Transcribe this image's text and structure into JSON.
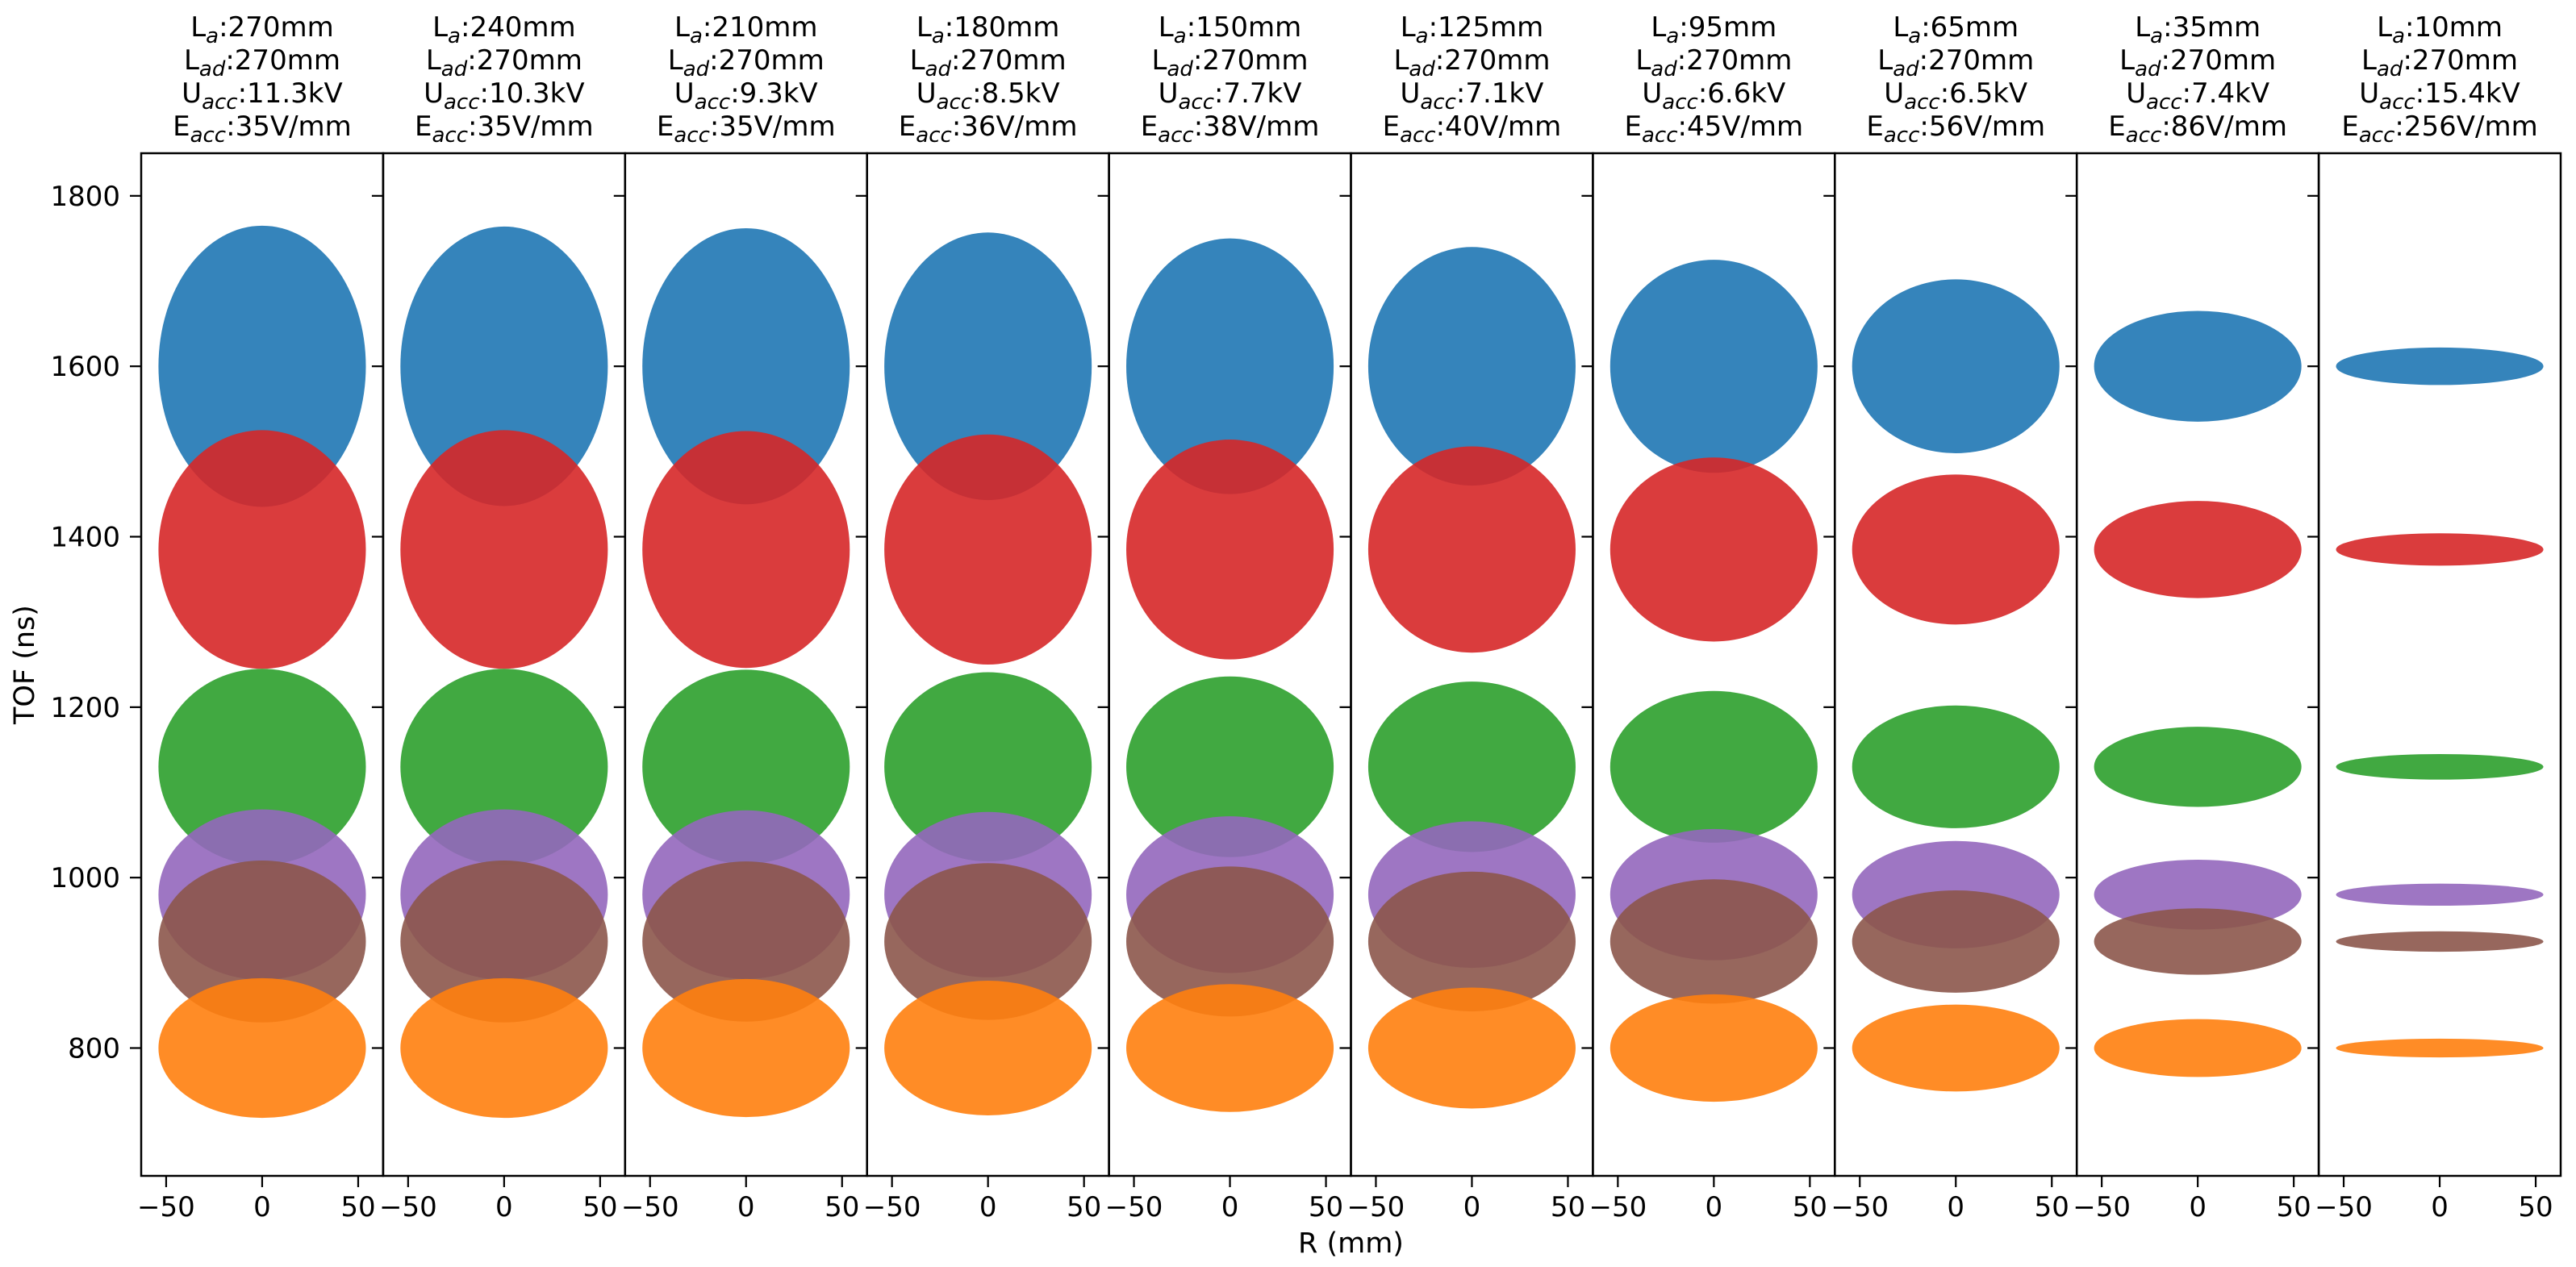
{
  "chart_data": {
    "type": "scatter",
    "layout": "10 side-by-side panels sharing the TOF (y) axis",
    "xlabel": "R (mm)",
    "ylabel": "TOF (ns)",
    "xlim": [
      -63,
      63
    ],
    "ylim": [
      650,
      1850
    ],
    "xticks": [
      -50,
      0,
      50
    ],
    "yticks": [
      800,
      1000,
      1200,
      1400,
      1600,
      1800
    ],
    "grid": false,
    "legend": "none",
    "marker_shape": "ellipse",
    "series_colors": [
      "#1f77b4",
      "#d62728",
      "#2ca02c",
      "#9467bd",
      "#8c564b",
      "#ff7f0e"
    ],
    "panels": [
      {
        "title": [
          {
            "base": "L",
            "sub": "a",
            "value": ":270mm"
          },
          {
            "base": "L",
            "sub": "ad",
            "value": ":270mm"
          },
          {
            "base": "U",
            "sub": "acc",
            "value": ":11.3kV"
          },
          {
            "base": "E",
            "sub": "acc",
            "value": ":35V/mm"
          }
        ],
        "ellipses": [
          {
            "x": 0,
            "y": 1600,
            "rx": 54,
            "ry": 165
          },
          {
            "x": 0,
            "y": 1385,
            "rx": 54,
            "ry": 140
          },
          {
            "x": 0,
            "y": 1130,
            "rx": 54,
            "ry": 115
          },
          {
            "x": 0,
            "y": 980,
            "rx": 54,
            "ry": 100
          },
          {
            "x": 0,
            "y": 925,
            "rx": 54,
            "ry": 95
          },
          {
            "x": 0,
            "y": 800,
            "rx": 54,
            "ry": 82
          }
        ]
      },
      {
        "title": [
          {
            "base": "L",
            "sub": "a",
            "value": ":240mm"
          },
          {
            "base": "L",
            "sub": "ad",
            "value": ":270mm"
          },
          {
            "base": "U",
            "sub": "acc",
            "value": ":10.3kV"
          },
          {
            "base": "E",
            "sub": "acc",
            "value": ":35V/mm"
          }
        ],
        "ellipses": [
          {
            "x": 0,
            "y": 1600,
            "rx": 54,
            "ry": 164
          },
          {
            "x": 0,
            "y": 1385,
            "rx": 54,
            "ry": 140
          },
          {
            "x": 0,
            "y": 1130,
            "rx": 54,
            "ry": 115
          },
          {
            "x": 0,
            "y": 980,
            "rx": 54,
            "ry": 100
          },
          {
            "x": 0,
            "y": 925,
            "rx": 54,
            "ry": 95
          },
          {
            "x": 0,
            "y": 800,
            "rx": 54,
            "ry": 82
          }
        ]
      },
      {
        "title": [
          {
            "base": "L",
            "sub": "a",
            "value": ":210mm"
          },
          {
            "base": "L",
            "sub": "ad",
            "value": ":270mm"
          },
          {
            "base": "U",
            "sub": "acc",
            "value": ":9.3kV"
          },
          {
            "base": "E",
            "sub": "acc",
            "value": ":35V/mm"
          }
        ],
        "ellipses": [
          {
            "x": 0,
            "y": 1600,
            "rx": 54,
            "ry": 162
          },
          {
            "x": 0,
            "y": 1385,
            "rx": 54,
            "ry": 139
          },
          {
            "x": 0,
            "y": 1130,
            "rx": 54,
            "ry": 114
          },
          {
            "x": 0,
            "y": 980,
            "rx": 54,
            "ry": 99
          },
          {
            "x": 0,
            "y": 925,
            "rx": 54,
            "ry": 94
          },
          {
            "x": 0,
            "y": 800,
            "rx": 54,
            "ry": 81
          }
        ]
      },
      {
        "title": [
          {
            "base": "L",
            "sub": "a",
            "value": ":180mm"
          },
          {
            "base": "L",
            "sub": "ad",
            "value": ":270mm"
          },
          {
            "base": "U",
            "sub": "acc",
            "value": ":8.5kV"
          },
          {
            "base": "E",
            "sub": "acc",
            "value": ":36V/mm"
          }
        ],
        "ellipses": [
          {
            "x": 0,
            "y": 1600,
            "rx": 54,
            "ry": 157
          },
          {
            "x": 0,
            "y": 1385,
            "rx": 54,
            "ry": 135
          },
          {
            "x": 0,
            "y": 1130,
            "rx": 54,
            "ry": 111
          },
          {
            "x": 0,
            "y": 980,
            "rx": 54,
            "ry": 97
          },
          {
            "x": 0,
            "y": 925,
            "rx": 54,
            "ry": 92
          },
          {
            "x": 0,
            "y": 800,
            "rx": 54,
            "ry": 79
          }
        ]
      },
      {
        "title": [
          {
            "base": "L",
            "sub": "a",
            "value": ":150mm"
          },
          {
            "base": "L",
            "sub": "ad",
            "value": ":270mm"
          },
          {
            "base": "U",
            "sub": "acc",
            "value": ":7.7kV"
          },
          {
            "base": "E",
            "sub": "acc",
            "value": ":38V/mm"
          }
        ],
        "ellipses": [
          {
            "x": 0,
            "y": 1600,
            "rx": 54,
            "ry": 150
          },
          {
            "x": 0,
            "y": 1385,
            "rx": 54,
            "ry": 129
          },
          {
            "x": 0,
            "y": 1130,
            "rx": 54,
            "ry": 106
          },
          {
            "x": 0,
            "y": 980,
            "rx": 54,
            "ry": 92
          },
          {
            "x": 0,
            "y": 925,
            "rx": 54,
            "ry": 88
          },
          {
            "x": 0,
            "y": 800,
            "rx": 54,
            "ry": 75
          }
        ]
      },
      {
        "title": [
          {
            "base": "L",
            "sub": "a",
            "value": ":125mm"
          },
          {
            "base": "L",
            "sub": "ad",
            "value": ":270mm"
          },
          {
            "base": "U",
            "sub": "acc",
            "value": ":7.1kV"
          },
          {
            "base": "E",
            "sub": "acc",
            "value": ":40V/mm"
          }
        ],
        "ellipses": [
          {
            "x": 0,
            "y": 1600,
            "rx": 54,
            "ry": 140
          },
          {
            "x": 0,
            "y": 1385,
            "rx": 54,
            "ry": 121
          },
          {
            "x": 0,
            "y": 1130,
            "rx": 54,
            "ry": 100
          },
          {
            "x": 0,
            "y": 980,
            "rx": 54,
            "ry": 86
          },
          {
            "x": 0,
            "y": 925,
            "rx": 54,
            "ry": 82
          },
          {
            "x": 0,
            "y": 800,
            "rx": 54,
            "ry": 71
          }
        ]
      },
      {
        "title": [
          {
            "base": "L",
            "sub": "a",
            "value": ":95mm"
          },
          {
            "base": "L",
            "sub": "ad",
            "value": ":270mm"
          },
          {
            "base": "U",
            "sub": "acc",
            "value": ":6.6kV"
          },
          {
            "base": "E",
            "sub": "acc",
            "value": ":45V/mm"
          }
        ],
        "ellipses": [
          {
            "x": 0,
            "y": 1600,
            "rx": 54,
            "ry": 125
          },
          {
            "x": 0,
            "y": 1385,
            "rx": 54,
            "ry": 108
          },
          {
            "x": 0,
            "y": 1130,
            "rx": 54,
            "ry": 89
          },
          {
            "x": 0,
            "y": 980,
            "rx": 54,
            "ry": 77
          },
          {
            "x": 0,
            "y": 925,
            "rx": 54,
            "ry": 73
          },
          {
            "x": 0,
            "y": 800,
            "rx": 54,
            "ry": 63
          }
        ]
      },
      {
        "title": [
          {
            "base": "L",
            "sub": "a",
            "value": ":65mm"
          },
          {
            "base": "L",
            "sub": "ad",
            "value": ":270mm"
          },
          {
            "base": "U",
            "sub": "acc",
            "value": ":6.5kV"
          },
          {
            "base": "E",
            "sub": "acc",
            "value": ":56V/mm"
          }
        ],
        "ellipses": [
          {
            "x": 0,
            "y": 1600,
            "rx": 54,
            "ry": 102
          },
          {
            "x": 0,
            "y": 1385,
            "rx": 54,
            "ry": 88
          },
          {
            "x": 0,
            "y": 1130,
            "rx": 54,
            "ry": 72
          },
          {
            "x": 0,
            "y": 980,
            "rx": 54,
            "ry": 63
          },
          {
            "x": 0,
            "y": 925,
            "rx": 54,
            "ry": 60
          },
          {
            "x": 0,
            "y": 800,
            "rx": 54,
            "ry": 51
          }
        ]
      },
      {
        "title": [
          {
            "base": "L",
            "sub": "a",
            "value": ":35mm"
          },
          {
            "base": "L",
            "sub": "ad",
            "value": ":270mm"
          },
          {
            "base": "U",
            "sub": "acc",
            "value": ":7.4kV"
          },
          {
            "base": "E",
            "sub": "acc",
            "value": ":86V/mm"
          }
        ],
        "ellipses": [
          {
            "x": 0,
            "y": 1600,
            "rx": 54,
            "ry": 65
          },
          {
            "x": 0,
            "y": 1385,
            "rx": 54,
            "ry": 57
          },
          {
            "x": 0,
            "y": 1130,
            "rx": 54,
            "ry": 47
          },
          {
            "x": 0,
            "y": 980,
            "rx": 54,
            "ry": 41
          },
          {
            "x": 0,
            "y": 925,
            "rx": 54,
            "ry": 39
          },
          {
            "x": 0,
            "y": 800,
            "rx": 54,
            "ry": 34
          }
        ]
      },
      {
        "title": [
          {
            "base": "L",
            "sub": "a",
            "value": ":10mm"
          },
          {
            "base": "L",
            "sub": "ad",
            "value": ":270mm"
          },
          {
            "base": "U",
            "sub": "acc",
            "value": ":15.4kV"
          },
          {
            "base": "E",
            "sub": "acc",
            "value": ":256V/mm"
          }
        ],
        "ellipses": [
          {
            "x": 0,
            "y": 1600,
            "rx": 54,
            "ry": 22
          },
          {
            "x": 0,
            "y": 1385,
            "rx": 54,
            "ry": 19
          },
          {
            "x": 0,
            "y": 1130,
            "rx": 54,
            "ry": 15
          },
          {
            "x": 0,
            "y": 980,
            "rx": 54,
            "ry": 13
          },
          {
            "x": 0,
            "y": 925,
            "rx": 54,
            "ry": 12
          },
          {
            "x": 0,
            "y": 800,
            "rx": 54,
            "ry": 11
          }
        ]
      }
    ]
  }
}
